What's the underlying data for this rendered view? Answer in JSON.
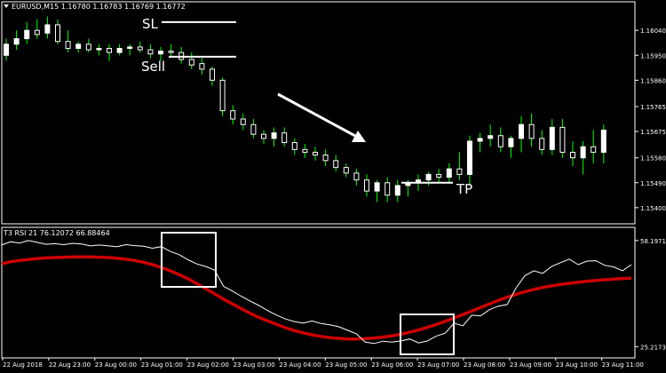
{
  "window": {
    "symbol_title": "EURUSD,M15  1.16780 1.16783 1.16769 1.16772",
    "indicator_title": "T3 RSI 21 76.12072 66.88464"
  },
  "annotations": {
    "sl_label": "SL",
    "sell_label": "Sell",
    "tp_label": "TP"
  },
  "colors": {
    "background": "#000000",
    "bull_candle": "#ffffff",
    "bear_candle": "#000000",
    "wick_up": "#00ff00",
    "rsi_line": "#ffffff",
    "t3_line": "#cc0000",
    "frame": "#ffffff"
  },
  "chart_data": [
    {
      "type": "candlestick",
      "title": "EURUSD,M15  1.16780 1.16783 1.16769 1.16772",
      "price_ticks": [
        "1.16040",
        "1.15950",
        "1.15860",
        "1.15765",
        "1.15675",
        "1.15580",
        "1.15490",
        "1.15400"
      ],
      "x_ticks": [
        "22 Aug 2018",
        "22 Aug 23:00",
        "23 Aug 00:00",
        "23 Aug 01:00",
        "23 Aug 02:00",
        "23 Aug 03:00",
        "23 Aug 04:00",
        "23 Aug 05:00",
        "23 Aug 06:00",
        "23 Aug 07:00",
        "23 Aug 08:00",
        "23 Aug 09:00",
        "23 Aug 10:00",
        "23 Aug 11:00"
      ],
      "ylim": [
        1.15345,
        1.1614
      ],
      "candles": [
        [
          1.1595,
          1.1601,
          1.1593,
          1.1599
        ],
        [
          1.1599,
          1.1604,
          1.1597,
          1.1601
        ],
        [
          1.1601,
          1.1607,
          1.1599,
          1.1604
        ],
        [
          1.1604,
          1.1608,
          1.1601,
          1.16025
        ],
        [
          1.1603,
          1.1609,
          1.1601,
          1.1606
        ],
        [
          1.1606,
          1.1608,
          1.1599,
          1.16
        ],
        [
          1.16,
          1.1604,
          1.1596,
          1.15975
        ],
        [
          1.15975,
          1.16,
          1.1596,
          1.1599
        ],
        [
          1.1599,
          1.1601,
          1.1596,
          1.1597
        ],
        [
          1.1597,
          1.1599,
          1.1595,
          1.15975
        ],
        [
          1.15975,
          1.1599,
          1.1593,
          1.1596
        ],
        [
          1.1596,
          1.1599,
          1.1595,
          1.15975
        ],
        [
          1.15975,
          1.1599,
          1.1595,
          1.1598
        ],
        [
          1.1598,
          1.16,
          1.1596,
          1.1597
        ],
        [
          1.1597,
          1.1599,
          1.1594,
          1.15955
        ],
        [
          1.15955,
          1.1598,
          1.1593,
          1.15965
        ],
        [
          1.15965,
          1.1599,
          1.1594,
          1.1596
        ],
        [
          1.1596,
          1.1598,
          1.1592,
          1.15935
        ],
        [
          1.15935,
          1.1596,
          1.159,
          1.15915
        ],
        [
          1.1592,
          1.1594,
          1.1588,
          1.159
        ],
        [
          1.159,
          1.1591,
          1.1584,
          1.1586
        ],
        [
          1.1586,
          1.1587,
          1.1573,
          1.1575
        ],
        [
          1.1575,
          1.1577,
          1.157,
          1.1572
        ],
        [
          1.1572,
          1.1574,
          1.1568,
          1.157
        ],
        [
          1.157,
          1.1572,
          1.1565,
          1.15665
        ],
        [
          1.15665,
          1.1568,
          1.1563,
          1.1565
        ],
        [
          1.1565,
          1.1569,
          1.1562,
          1.1567
        ],
        [
          1.1567,
          1.1569,
          1.1562,
          1.15635
        ],
        [
          1.15635,
          1.1565,
          1.1559,
          1.1561
        ],
        [
          1.1561,
          1.1563,
          1.1558,
          1.156
        ],
        [
          1.156,
          1.1562,
          1.1557,
          1.1559
        ],
        [
          1.1559,
          1.1561,
          1.1555,
          1.1557
        ],
        [
          1.1557,
          1.1559,
          1.1553,
          1.15545
        ],
        [
          1.15545,
          1.1556,
          1.1551,
          1.15525
        ],
        [
          1.15525,
          1.1554,
          1.1548,
          1.155
        ],
        [
          1.155,
          1.1552,
          1.1544,
          1.1546
        ],
        [
          1.1546,
          1.155,
          1.1542,
          1.1549
        ],
        [
          1.1549,
          1.1551,
          1.1542,
          1.15445
        ],
        [
          1.15445,
          1.155,
          1.1542,
          1.1548
        ],
        [
          1.1548,
          1.155,
          1.1544,
          1.1549
        ],
        [
          1.1549,
          1.1552,
          1.1546,
          1.155
        ],
        [
          1.155,
          1.1553,
          1.1548,
          1.1552
        ],
        [
          1.1552,
          1.1554,
          1.1549,
          1.1551
        ],
        [
          1.1551,
          1.1556,
          1.1549,
          1.1554
        ],
        [
          1.1554,
          1.156,
          1.155,
          1.1552
        ],
        [
          1.1552,
          1.1566,
          1.1548,
          1.1564
        ],
        [
          1.1564,
          1.1567,
          1.156,
          1.1565
        ],
        [
          1.1565,
          1.157,
          1.1562,
          1.1566
        ],
        [
          1.1566,
          1.1569,
          1.156,
          1.1562
        ],
        [
          1.1562,
          1.1566,
          1.1558,
          1.1565
        ],
        [
          1.1565,
          1.1573,
          1.156,
          1.157
        ],
        [
          1.157,
          1.1574,
          1.1562,
          1.1565
        ],
        [
          1.1565,
          1.1568,
          1.1559,
          1.1561
        ],
        [
          1.1561,
          1.1572,
          1.1559,
          1.1569
        ],
        [
          1.1569,
          1.1572,
          1.1558,
          1.156
        ],
        [
          1.156,
          1.1564,
          1.1555,
          1.1558
        ],
        [
          1.1558,
          1.1564,
          1.1552,
          1.1562
        ],
        [
          1.1562,
          1.1568,
          1.1556,
          1.156
        ],
        [
          1.156,
          1.157,
          1.1556,
          1.1568
        ]
      ],
      "levels": {
        "stop_loss": 1.1607,
        "sell_entry": 1.15945,
        "take_profit": 1.1549
      }
    },
    {
      "type": "line",
      "title": "T3 RSI 21 76.12072 66.88464",
      "y_ticks": [
        "58.19714",
        "25.21738"
      ],
      "ylim": [
        22,
        62
      ],
      "series": [
        {
          "values": [
            56.8,
            57.8,
            57.4,
            58.2,
            57.6,
            57.0,
            57.2,
            56.9,
            57.3,
            57.1,
            56.5,
            56.8,
            56.5,
            56.3,
            56.9,
            56.6,
            56.4,
            55.8,
            56.3,
            54.8,
            53.8,
            52.2,
            50.9,
            50.1,
            49.0,
            44.0,
            42.5,
            40.9,
            39.4,
            38.0,
            36.4,
            35.0,
            33.8,
            33.0,
            32.5,
            33.2,
            32.4,
            32.0,
            31.4,
            30.3,
            29.2,
            26.6,
            26.2,
            26.9,
            26.6,
            27.0,
            27.6,
            26.4,
            27.0,
            28.5,
            29.4,
            32.5,
            31.7,
            35.0,
            34.8,
            36.7,
            37.8,
            38.3,
            43.5,
            47.3,
            48.8,
            48.0,
            50.1,
            51.3,
            52.4,
            50.7,
            51.8,
            51.9,
            50.5,
            50.0,
            48.8,
            50.7
          ]
        },
        {
          "values": [
            51.0,
            51.6,
            52.0,
            52.3,
            52.6,
            52.8,
            52.9,
            53.0,
            53.1,
            53.1,
            53.1,
            53.0,
            52.9,
            52.7,
            52.4,
            52.0,
            51.4,
            50.7,
            49.8,
            48.8,
            47.6,
            46.3,
            44.8,
            43.2,
            41.6,
            40.0,
            38.5,
            37.0,
            35.6,
            34.3,
            33.2,
            32.1,
            31.1,
            30.2,
            29.5,
            28.9,
            28.4,
            28.0,
            27.8,
            27.6,
            27.6,
            27.7,
            27.9,
            28.2,
            28.6,
            29.1,
            29.7,
            30.4,
            31.2,
            32.1,
            33.1,
            34.1,
            35.2,
            36.3,
            37.4,
            38.5,
            39.6,
            40.6,
            41.5,
            42.3,
            43.0,
            43.6,
            44.1,
            44.5,
            44.9,
            45.2,
            45.5,
            45.8,
            46.0,
            46.2,
            46.4,
            46.5
          ]
        }
      ]
    }
  ]
}
